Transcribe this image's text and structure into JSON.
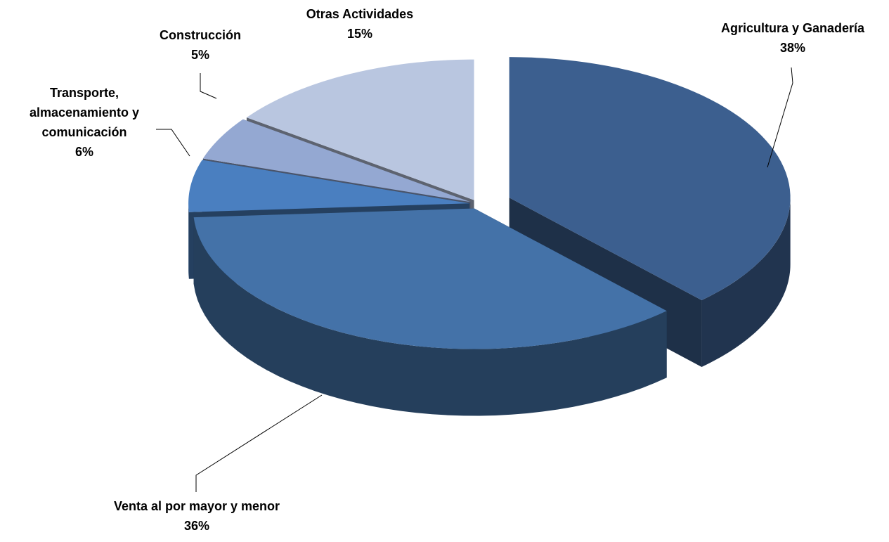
{
  "chart_data": {
    "type": "pie",
    "categories": [
      "Agricultura y Ganadería",
      "Venta al por mayor y menor",
      "Transporte, almacenamiento y comunicación",
      "Construcción",
      "Otras Actividades"
    ],
    "values": [
      38,
      36,
      6,
      5,
      15
    ],
    "value_labels": [
      "38%",
      "36%",
      "6%",
      "5%",
      "15%"
    ],
    "colors": [
      "#3c5f8f",
      "#4472a8",
      "#4a7fc0",
      "#94a8d2",
      "#b9c6e0"
    ]
  }
}
